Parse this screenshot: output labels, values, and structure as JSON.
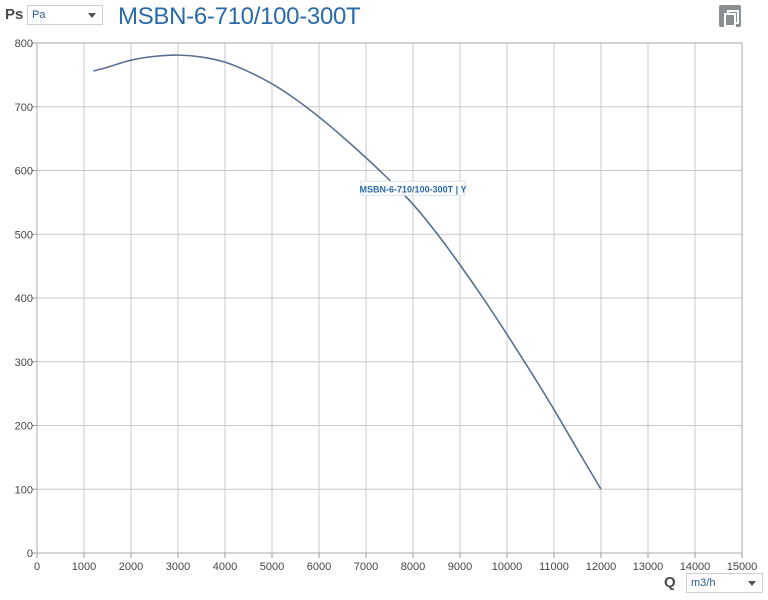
{
  "header": {
    "y_axis_symbol": "Ps",
    "y_unit_selected": "Pa",
    "title": "MSBN-6-710/100-300T"
  },
  "footer": {
    "x_axis_symbol": "Q",
    "x_unit_selected": "m3/h"
  },
  "toolbar": {
    "copy_icon": "copy-icon"
  },
  "colors": {
    "curve": "#5b7090",
    "title": "#2a6aa8",
    "grid": "#c8c8c8",
    "label": "#2a6aa8"
  },
  "chart_data": {
    "type": "line",
    "title": "MSBN-6-710/100-300T",
    "xlabel": "Q",
    "ylabel": "Ps",
    "xlim": [
      0,
      15000
    ],
    "ylim": [
      0,
      800
    ],
    "x_ticks": [
      0,
      1000,
      2000,
      3000,
      4000,
      5000,
      6000,
      7000,
      8000,
      9000,
      10000,
      11000,
      12000,
      13000,
      14000,
      15000
    ],
    "y_ticks": [
      0,
      100,
      200,
      300,
      400,
      500,
      600,
      700,
      800
    ],
    "grid": true,
    "series": [
      {
        "name": "MSBN-6-710/100-300T | Y",
        "x": [
          1200,
          1500,
          2000,
          2500,
          3000,
          3500,
          4000,
          4500,
          5000,
          5500,
          6000,
          6500,
          7000,
          7500,
          8000,
          8500,
          9000,
          9500,
          10000,
          10500,
          11000,
          11500,
          12000
        ],
        "y": [
          756,
          762,
          773,
          779,
          781,
          778,
          770,
          755,
          736,
          712,
          684,
          653,
          620,
          585,
          547,
          502,
          452,
          399,
          343,
          285,
          225,
          162,
          100
        ]
      }
    ],
    "series_label": {
      "text": "MSBN-6-710/100-300T | Y",
      "x": 8000,
      "y": 569
    }
  }
}
